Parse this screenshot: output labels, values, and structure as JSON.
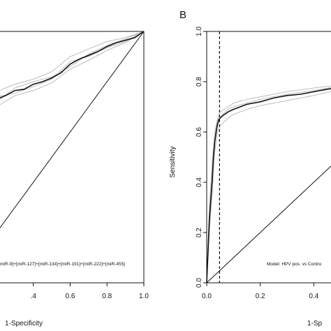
{
  "chart_data": [
    {
      "type": "line",
      "panel": "A",
      "panel_letter": "",
      "title": "",
      "xlabel": "1-Specificity",
      "ylabel": "",
      "xlim": [
        0.2,
        1.0
      ],
      "ylim": [
        0.0,
        1.0
      ],
      "x_ticks": [
        0.4,
        0.6,
        0.8,
        1.0
      ],
      "x_tick_labels": [
        ".4",
        "0.6",
        "0.8",
        "1.0"
      ],
      "y_ticks": [],
      "grid": false,
      "annotation": "miR-9]+[miR-127]+[miR-134]+[miR-191]+[miR-222]+[miR-455]",
      "series": [
        {
          "role": "roc",
          "color": "#111111",
          "x": [
            0.2,
            0.25,
            0.3,
            0.35,
            0.4,
            0.45,
            0.5,
            0.55,
            0.6,
            0.65,
            0.7,
            0.75,
            0.8,
            0.85,
            0.9,
            0.95,
            1.0
          ],
          "y": [
            0.73,
            0.745,
            0.765,
            0.77,
            0.79,
            0.8,
            0.815,
            0.835,
            0.87,
            0.89,
            0.905,
            0.92,
            0.94,
            0.955,
            0.965,
            0.975,
            1.0
          ]
        },
        {
          "role": "bootstrap",
          "color": "#bbbbbb",
          "x": [
            0.2,
            0.3,
            0.4,
            0.5,
            0.6,
            0.7,
            0.8,
            0.9,
            1.0
          ],
          "y": [
            0.76,
            0.79,
            0.81,
            0.84,
            0.9,
            0.93,
            0.96,
            0.975,
            1.0
          ]
        },
        {
          "role": "bootstrap",
          "color": "#bbbbbb",
          "x": [
            0.2,
            0.3,
            0.4,
            0.5,
            0.6,
            0.7,
            0.8,
            0.9,
            1.0
          ],
          "y": [
            0.7,
            0.745,
            0.765,
            0.795,
            0.85,
            0.885,
            0.925,
            0.955,
            1.0
          ]
        },
        {
          "role": "bootstrap",
          "color": "#bbbbbb",
          "x": [
            0.2,
            0.3,
            0.4,
            0.5,
            0.6,
            0.7,
            0.8,
            0.9,
            1.0
          ],
          "y": [
            0.72,
            0.775,
            0.8,
            0.82,
            0.86,
            0.91,
            0.945,
            0.97,
            1.0
          ]
        },
        {
          "role": "bootstrap",
          "color": "#bbbbbb",
          "x": [
            0.2,
            0.3,
            0.4,
            0.5,
            0.6,
            0.7,
            0.8,
            0.9,
            1.0
          ],
          "y": [
            0.74,
            0.755,
            0.78,
            0.81,
            0.88,
            0.9,
            0.935,
            0.96,
            1.0
          ]
        },
        {
          "role": "reference",
          "color": "#111111",
          "x": [
            0.2,
            1.0
          ],
          "y": [
            0.2,
            1.0
          ]
        }
      ]
    },
    {
      "type": "line",
      "panel": "B",
      "panel_letter": "B",
      "title": "",
      "xlabel": "1-Sp",
      "ylabel": "Sensitivity",
      "xlim": [
        0.0,
        0.48
      ],
      "ylim": [
        0.0,
        1.0
      ],
      "x_ticks": [
        0.0,
        0.2,
        0.4
      ],
      "x_tick_labels": [
        "0.0",
        "0.2",
        "0.4"
      ],
      "y_ticks": [
        0.0,
        0.2,
        0.4,
        0.6,
        0.8,
        1.0
      ],
      "y_tick_labels": [
        "0.0",
        "0.2",
        "0.4",
        "0.6",
        "0.8",
        "1.0"
      ],
      "grid": false,
      "cutoff_x": 0.048,
      "annotation": "Model: HPV pos. vs Contro",
      "series": [
        {
          "role": "roc",
          "color": "#111111",
          "x": [
            0.0,
            0.01,
            0.02,
            0.025,
            0.03,
            0.035,
            0.04,
            0.045,
            0.05,
            0.06,
            0.08,
            0.1,
            0.15,
            0.2,
            0.25,
            0.3,
            0.35,
            0.4,
            0.45,
            0.48
          ],
          "y": [
            0.0,
            0.25,
            0.4,
            0.5,
            0.56,
            0.6,
            0.63,
            0.65,
            0.655,
            0.665,
            0.68,
            0.69,
            0.71,
            0.72,
            0.735,
            0.745,
            0.75,
            0.76,
            0.77,
            0.775
          ]
        },
        {
          "role": "bootstrap",
          "color": "#bbbbbb",
          "x": [
            0.0,
            0.01,
            0.02,
            0.03,
            0.04,
            0.05,
            0.08,
            0.1,
            0.15,
            0.2,
            0.3,
            0.4,
            0.48
          ],
          "y": [
            0.0,
            0.3,
            0.47,
            0.6,
            0.65,
            0.68,
            0.7,
            0.715,
            0.73,
            0.74,
            0.76,
            0.775,
            0.785
          ]
        },
        {
          "role": "bootstrap",
          "color": "#bbbbbb",
          "x": [
            0.0,
            0.01,
            0.02,
            0.03,
            0.04,
            0.05,
            0.08,
            0.1,
            0.15,
            0.2,
            0.3,
            0.4,
            0.48
          ],
          "y": [
            0.0,
            0.2,
            0.35,
            0.52,
            0.6,
            0.625,
            0.655,
            0.67,
            0.69,
            0.705,
            0.725,
            0.745,
            0.765
          ]
        },
        {
          "role": "bootstrap",
          "color": "#bbbbbb",
          "x": [
            0.0,
            0.01,
            0.02,
            0.03,
            0.04,
            0.05,
            0.08,
            0.1,
            0.15,
            0.2,
            0.3,
            0.4,
            0.48
          ],
          "y": [
            0.0,
            0.27,
            0.42,
            0.56,
            0.62,
            0.66,
            0.69,
            0.7,
            0.715,
            0.73,
            0.75,
            0.765,
            0.78
          ]
        },
        {
          "role": "reference",
          "color": "#111111",
          "x": [
            0.0,
            0.48
          ],
          "y": [
            0.0,
            0.48
          ]
        }
      ]
    }
  ]
}
